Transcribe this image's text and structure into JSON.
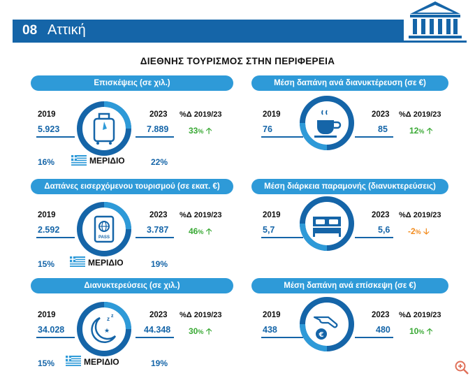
{
  "header": {
    "number": "08",
    "region": "Αττική"
  },
  "title": "ΔΙΕΘΝΗΣ ΤΟΥΡΙΣΜΟΣ ΣΤΗΝ ΠΕΡΙΦΕΡΕΙΑ",
  "labels": {
    "year_a": "2019",
    "year_b": "2023",
    "pct_header": "%Δ 2019/23",
    "meridio": "ΜΕΡΙΔΙΟ"
  },
  "colors": {
    "brand_blue": "#1565a8",
    "pill_blue": "#2e9ad8",
    "up_green": "#3aa935",
    "down_orange": "#f28b1e"
  },
  "left_panels": [
    {
      "title": "Επισκέψεις (σε χιλ.)",
      "icon": "suitcase-icon",
      "v2019": "5.923",
      "v2023": "7.889",
      "pct": "33",
      "trend": "up",
      "share2019": "16%",
      "share2023": "22%"
    },
    {
      "title": "Δαπάνες εισερχόμενου τουρισμού (σε εκατ. €)",
      "icon": "passport-icon",
      "v2019": "2.592",
      "v2023": "3.787",
      "pct": "46",
      "trend": "up",
      "share2019": "15%",
      "share2023": "19%"
    },
    {
      "title": "Διανυκτερεύσεις (σε χιλ.)",
      "icon": "moon-icon",
      "v2019": "34.028",
      "v2023": "44.348",
      "pct": "30",
      "trend": "up",
      "share2019": "15%",
      "share2023": "19%"
    }
  ],
  "right_panels": [
    {
      "title": "Μέση δαπάνη ανά διανυκτέρευση (σε €)",
      "icon": "coffee-cup-icon",
      "v2019": "76",
      "v2023": "85",
      "pct": "12",
      "trend": "up"
    },
    {
      "title": "Μέση διάρκεια παραμονής (διανυκτερεύσεις)",
      "icon": "bed-icon",
      "v2019": "5,7",
      "v2023": "5,6",
      "pct": "-2",
      "trend": "down"
    },
    {
      "title": "Μέση δαπάνη ανά επίσκεψη (σε €)",
      "icon": "hand-euro-icon",
      "v2019": "438",
      "v2023": "480",
      "pct": "10",
      "trend": "up"
    }
  ]
}
